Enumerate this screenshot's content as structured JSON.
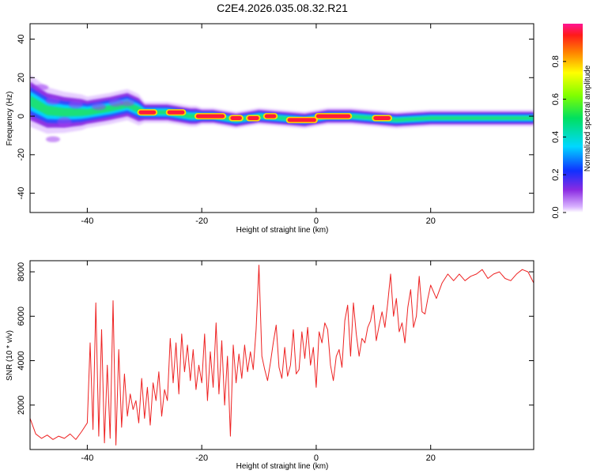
{
  "title": "C2E4.2026.035.08.32.R21",
  "chart_data": [
    {
      "type": "heatmap",
      "name": "spectrogram",
      "xlabel": "Height of straight line (km)",
      "ylabel": "Frequency (Hz)",
      "xlim": [
        -50,
        38
      ],
      "ylim": [
        -50,
        48
      ],
      "xticks": [
        -40,
        -20,
        0,
        20
      ],
      "yticks": [
        -40,
        -20,
        0,
        20,
        40
      ],
      "band_center_hz": [
        [
          -50,
          8
        ],
        [
          -47,
          3
        ],
        [
          -44,
          2
        ],
        [
          -40,
          2
        ],
        [
          -36,
          4
        ],
        [
          -33,
          6
        ],
        [
          -30,
          2
        ],
        [
          -26,
          2
        ],
        [
          -22,
          0
        ],
        [
          -18,
          0
        ],
        [
          -14,
          -2
        ],
        [
          -10,
          0
        ],
        [
          -6,
          -1
        ],
        [
          -2,
          -2
        ],
        [
          2,
          0
        ],
        [
          6,
          0
        ],
        [
          10,
          -1
        ],
        [
          14,
          -2
        ],
        [
          20,
          -1
        ],
        [
          28,
          -1
        ],
        [
          38,
          -1
        ]
      ],
      "hotspots": [
        {
          "x_start": -31,
          "x_end": -28,
          "y": 2
        },
        {
          "x_start": -26,
          "x_end": -23,
          "y": 2
        },
        {
          "x_start": -21,
          "x_end": -16,
          "y": 0
        },
        {
          "x_start": -15,
          "x_end": -13,
          "y": -1
        },
        {
          "x_start": -12,
          "x_end": -10,
          "y": -1
        },
        {
          "x_start": -9,
          "x_end": -7,
          "y": 0
        },
        {
          "x_start": -5,
          "x_end": 0,
          "y": -2
        },
        {
          "x_start": 0,
          "x_end": 6,
          "y": 0
        },
        {
          "x_start": 10,
          "x_end": 13,
          "y": -1
        }
      ],
      "colorbar": {
        "label": "Normalized spectral amplitude",
        "range": [
          0,
          1
        ],
        "ticks": [
          "0.0",
          "0.2",
          "0.4",
          "0.6",
          "0.8"
        ]
      }
    },
    {
      "type": "line",
      "name": "snr",
      "xlabel": "Height of straight line (km)",
      "ylabel": "SNR (10 * v/v)",
      "xlim": [
        -50,
        38
      ],
      "ylim": [
        0,
        8500
      ],
      "xticks": [
        -40,
        -20,
        0,
        20
      ],
      "yticks": [
        2000,
        4000,
        6000,
        8000
      ],
      "color": "#ee2222",
      "x": [
        -50,
        -49,
        -48,
        -47,
        -46,
        -45,
        -44,
        -43,
        -42,
        -41,
        -40,
        -39.5,
        -39,
        -38.5,
        -38,
        -37.5,
        -37,
        -36.5,
        -36,
        -35.5,
        -35,
        -34.5,
        -34,
        -33.5,
        -33,
        -32.5,
        -32,
        -31.5,
        -31,
        -30.5,
        -30,
        -29.5,
        -29,
        -28.5,
        -28,
        -27.5,
        -27,
        -26.5,
        -26,
        -25.5,
        -25,
        -24.5,
        -24,
        -23.5,
        -23,
        -22.5,
        -22,
        -21.5,
        -21,
        -20.5,
        -20,
        -19.5,
        -19,
        -18.5,
        -18,
        -17.5,
        -17,
        -16.5,
        -16,
        -15.5,
        -15,
        -14.5,
        -14,
        -13.5,
        -13,
        -12.5,
        -12,
        -11.5,
        -11,
        -10.5,
        -10,
        -9.5,
        -9,
        -8.5,
        -8,
        -7.5,
        -7,
        -6.5,
        -6,
        -5.5,
        -5,
        -4.5,
        -4,
        -3.5,
        -3,
        -2.5,
        -2,
        -1.5,
        -1,
        -0.5,
        0,
        0.5,
        1,
        1.5,
        2,
        2.5,
        3,
        3.5,
        4,
        4.5,
        5,
        5.5,
        6,
        6.5,
        7,
        7.5,
        8,
        8.5,
        9,
        9.5,
        10,
        10.5,
        11,
        11.5,
        12,
        12.5,
        13,
        13.5,
        14,
        14.5,
        15,
        15.5,
        16,
        16.5,
        17,
        17.5,
        18,
        18.5,
        19,
        19.5,
        20,
        21,
        22,
        23,
        24,
        25,
        26,
        27,
        28,
        29,
        30,
        31,
        32,
        33,
        34,
        35,
        36,
        37,
        38
      ],
      "values": [
        1400,
        700,
        500,
        650,
        450,
        600,
        500,
        700,
        450,
        800,
        1200,
        4800,
        900,
        6600,
        600,
        5400,
        300,
        3800,
        500,
        6700,
        200,
        4500,
        1000,
        3400,
        1500,
        2500,
        1800,
        2200,
        1200,
        3200,
        1400,
        2800,
        1100,
        3000,
        2200,
        3500,
        1500,
        2700,
        2200,
        5000,
        3000,
        4800,
        2500,
        5200,
        3500,
        4700,
        3100,
        4500,
        2700,
        3800,
        3000,
        5200,
        2200,
        4400,
        2800,
        5700,
        2500,
        4900,
        2000,
        4200,
        600,
        4700,
        3000,
        4300,
        3200,
        4700,
        3500,
        4400,
        3600,
        5400,
        8300,
        4200,
        3600,
        3100,
        3900,
        4800,
        5600,
        3700,
        3200,
        4600,
        3300,
        3800,
        5400,
        3400,
        3600,
        5300,
        4100,
        5500,
        3800,
        4600,
        2800,
        5300,
        4800,
        5700,
        5400,
        3800,
        3100,
        4200,
        4500,
        3700,
        5800,
        6500,
        4200,
        6600,
        5200,
        4200,
        5000,
        4800,
        5500,
        5800,
        6500,
        4900,
        5600,
        6200,
        5500,
        6600,
        7900,
        6000,
        6800,
        5300,
        5700,
        4800,
        6400,
        7200,
        5500,
        6000,
        7800,
        6200,
        6100,
        6800,
        7400,
        6800,
        7500,
        7900,
        7600,
        7900,
        7600,
        7800,
        7900,
        8100,
        7700,
        7900,
        8000,
        7700,
        7600,
        7900,
        8100,
        8000,
        7500
      ]
    }
  ]
}
